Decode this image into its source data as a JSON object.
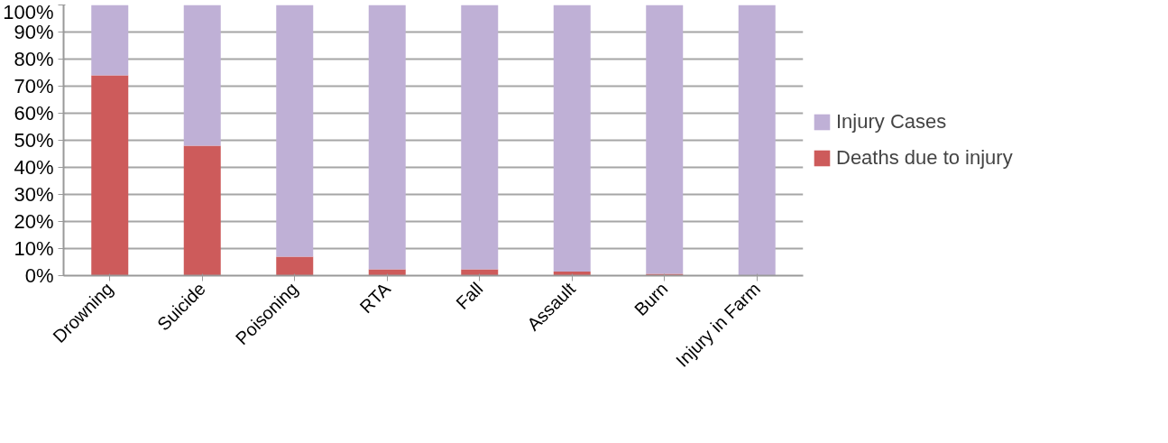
{
  "chart_data": {
    "type": "bar",
    "stacked": true,
    "categories": [
      "Drowning",
      "Suicide",
      "Poisoning",
      "RTA",
      "Fall",
      "Assault",
      "Burn",
      "Injury in Farm"
    ],
    "series": [
      {
        "name": "Deaths due to injury",
        "color": "#cd5b5b",
        "values": [
          74,
          48,
          7,
          2.3,
          2.3,
          1.5,
          0.7,
          0
        ]
      },
      {
        "name": "Injury Cases",
        "color": "#bfb0d6",
        "values": [
          26,
          52,
          93,
          97.7,
          97.7,
          98.5,
          99.3,
          100
        ]
      }
    ],
    "ylim": [
      0,
      100
    ],
    "yticks": [
      {
        "value": 0,
        "label": "0%"
      },
      {
        "value": 10,
        "label": "10%"
      },
      {
        "value": 20,
        "label": "20%"
      },
      {
        "value": 30,
        "label": "30%"
      },
      {
        "value": 40,
        "label": "40%"
      },
      {
        "value": 50,
        "label": "50%"
      },
      {
        "value": 60,
        "label": "60%"
      },
      {
        "value": 70,
        "label": "70%"
      },
      {
        "value": 80,
        "label": "80%"
      },
      {
        "value": 90,
        "label": "90%"
      },
      {
        "value": 100,
        "label": "100%"
      }
    ],
    "grid": "y",
    "legend": "right"
  }
}
